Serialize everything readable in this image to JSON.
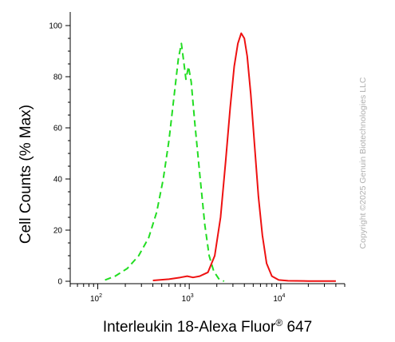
{
  "chart_data": {
    "type": "line",
    "title": "",
    "xlabel_main": "Interleukin 18-Alexa Fluor",
    "xlabel_sup": "®",
    "xlabel_tail": " 647",
    "ylabel": "Cell Counts (% Max)",
    "x_scale": "log",
    "xlim": [
      50,
      50000
    ],
    "ylim": [
      0,
      105
    ],
    "y_ticks": [
      0,
      20,
      40,
      60,
      80,
      100
    ],
    "x_ticks": [
      {
        "value": 100,
        "base": "10",
        "exp": "2"
      },
      {
        "value": 1000,
        "base": "10",
        "exp": "3"
      },
      {
        "value": 10000,
        "base": "10",
        "exp": "4"
      }
    ],
    "grid": false,
    "legend": "none",
    "series": [
      {
        "color": "#22dd22",
        "style": "dashed",
        "x": [
          120,
          155,
          210,
          280,
          360,
          440,
          520,
          600,
          680,
          760,
          820,
          870,
          920,
          980,
          1050,
          1150,
          1300,
          1480,
          1650,
          1850,
          2100,
          2400
        ],
        "y": [
          0.5,
          2,
          5,
          10,
          17,
          27,
          40,
          55,
          72,
          87,
          93,
          86,
          79,
          84,
          78,
          62,
          42,
          22,
          10,
          4,
          1,
          0
        ]
      },
      {
        "color": "#ee1111",
        "style": "solid",
        "x": [
          400,
          600,
          800,
          950,
          1100,
          1300,
          1600,
          1900,
          2200,
          2500,
          2800,
          3100,
          3400,
          3700,
          4000,
          4300,
          4700,
          5200,
          5700,
          6300,
          7000,
          8000,
          9500,
          12000,
          20000,
          40000
        ],
        "y": [
          0.3,
          0.8,
          1.5,
          2,
          1.5,
          2,
          3.5,
          10,
          25,
          47,
          68,
          84,
          93,
          97,
          95,
          88,
          73,
          52,
          33,
          18,
          7,
          2,
          0.5,
          0.2,
          0.1,
          0.1
        ]
      }
    ]
  },
  "watermark": {
    "copyright": "Copyright ©2025 Genuin Biotechnologies LLC"
  }
}
